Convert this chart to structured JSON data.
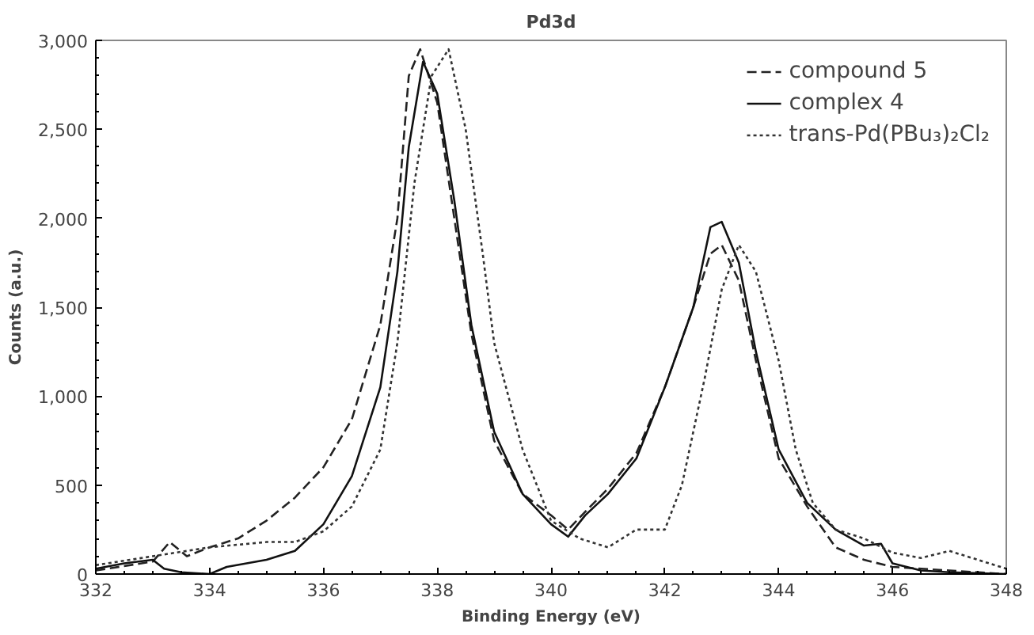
{
  "chart_data": {
    "type": "line",
    "title": "Pd3d",
    "xlabel": "Binding Energy (eV)",
    "ylabel": "Counts (a.u.)",
    "xlim": [
      332,
      348
    ],
    "xticks": [
      332,
      334,
      336,
      338,
      340,
      342,
      344,
      346,
      348
    ],
    "ylim": [
      0,
      3000
    ],
    "yticks": [
      {
        "value": 0,
        "label": "0"
      },
      {
        "value": 500,
        "label": "500"
      },
      {
        "value": 1000,
        "label": "1,000"
      },
      {
        "value": 1500,
        "label": "1,500"
      },
      {
        "value": 2000,
        "label": "2,000"
      },
      {
        "value": 2500,
        "label": "2,500"
      },
      {
        "value": 3000,
        "label": "3,000"
      }
    ],
    "grid": false,
    "legend": "top right",
    "marker": "none",
    "series": [
      {
        "name": "compound 5",
        "color": "#222222",
        "line_style": "dashed",
        "x": [
          332,
          333,
          333.3,
          333.6,
          334,
          334.5,
          335,
          335.5,
          336,
          336.5,
          337,
          337.3,
          337.5,
          337.7,
          338,
          338.3,
          338.6,
          339,
          339.5,
          340,
          340.3,
          340.6,
          341,
          341.5,
          342,
          342.5,
          342.8,
          343,
          343.3,
          343.6,
          344,
          344.5,
          345,
          345.5,
          346,
          347,
          348
        ],
        "values": [
          20,
          70,
          180,
          100,
          150,
          200,
          300,
          430,
          600,
          870,
          1400,
          2000,
          2800,
          2950,
          2650,
          2000,
          1350,
          750,
          450,
          330,
          250,
          350,
          480,
          680,
          1050,
          1500,
          1800,
          1850,
          1650,
          1200,
          650,
          380,
          150,
          80,
          40,
          20,
          0
        ]
      },
      {
        "name": "complex 4",
        "color": "#111111",
        "line_style": "solid",
        "x": [
          332,
          332.5,
          333,
          333.2,
          333.5,
          334,
          334.3,
          335,
          335.5,
          336,
          336.5,
          337,
          337.3,
          337.5,
          337.75,
          338,
          338.3,
          338.6,
          339,
          339.5,
          340,
          340.3,
          340.6,
          341,
          341.5,
          342,
          342.5,
          342.8,
          343,
          343.3,
          343.6,
          344,
          344.5,
          345,
          345.5,
          345.8,
          346,
          346.5,
          347,
          348
        ],
        "values": [
          30,
          60,
          80,
          30,
          10,
          0,
          40,
          80,
          130,
          280,
          550,
          1050,
          1700,
          2400,
          2880,
          2700,
          2100,
          1400,
          800,
          450,
          280,
          210,
          330,
          450,
          650,
          1050,
          1500,
          1950,
          1980,
          1750,
          1250,
          700,
          400,
          250,
          160,
          170,
          60,
          20,
          10,
          0
        ]
      },
      {
        "name": "trans-Pd(PBu₃)₂Cl₂",
        "color": "#333333",
        "line_style": "dotted",
        "x": [
          332,
          333,
          334,
          335,
          335.5,
          336,
          336.5,
          337,
          337.3,
          337.6,
          337.9,
          338.2,
          338.5,
          338.8,
          339,
          339.5,
          340,
          340.5,
          341,
          341.5,
          342,
          342.3,
          342.7,
          343,
          343.3,
          343.6,
          344,
          344.3,
          344.6,
          345,
          345.5,
          346,
          346.5,
          347,
          347.5,
          348
        ],
        "values": [
          50,
          100,
          150,
          180,
          180,
          240,
          380,
          700,
          1300,
          2200,
          2800,
          2950,
          2500,
          1800,
          1300,
          700,
          300,
          200,
          150,
          250,
          250,
          500,
          1100,
          1600,
          1850,
          1700,
          1200,
          700,
          400,
          250,
          200,
          120,
          90,
          130,
          80,
          30
        ]
      }
    ]
  }
}
